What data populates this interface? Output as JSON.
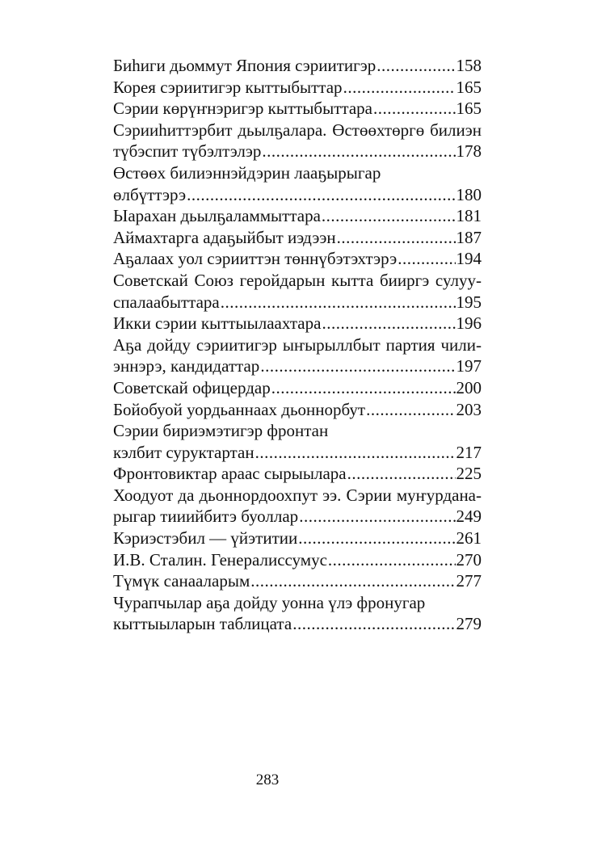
{
  "toc": {
    "entries": [
      {
        "lines": [],
        "last": "Биhиги дьоммут Япония сэриитигэр",
        "page": "158"
      },
      {
        "lines": [],
        "last": "Корея сэриитигэр кыттыбыттар",
        "page": "165"
      },
      {
        "lines": [],
        "last": "Сэрии көрүҥнэригэр кыттыбыттара",
        "page": "165"
      },
      {
        "lines": [
          {
            "text": "Сэрииhиттэрбит дьылҕалара. Өстөөхтөргө билиэн",
            "justify": true
          }
        ],
        "last": "түбэспит түбэлтэлэр",
        "page": "178"
      },
      {
        "lines": [
          {
            "text": "Өстөөх билиэннэйдэрин лааҕырыгар",
            "justify": false
          }
        ],
        "last": "өлбүттэрэ",
        "page": "180"
      },
      {
        "lines": [],
        "last": "Ыарахан дьылҕаламмыттара",
        "page": "181"
      },
      {
        "lines": [],
        "last": "Аймахтарга адаҕыйбыт иэдээн",
        "page": "187"
      },
      {
        "lines": [],
        "last": "Аҕалаах уол сэрииттэн төннүбэтэхтэрэ",
        "page": "194"
      },
      {
        "lines": [
          {
            "text": "Советскай Союз геройдарын кытта бииргэ сулуу-",
            "justify": true
          }
        ],
        "last": "спалаабыттара",
        "page": "195"
      },
      {
        "lines": [],
        "last": "Икки сэрии кыттыылаахтара",
        "page": "196"
      },
      {
        "lines": [
          {
            "text": "Аҕа дойду сэриитигэр ыҥырыллбыт партия чили-",
            "justify": true
          }
        ],
        "last": "эннэрэ, кандидаттар",
        "page": "197"
      },
      {
        "lines": [],
        "last": "Советскай офицердар",
        "page": "200"
      },
      {
        "lines": [],
        "last": "Бойобуой уордьаннаах дьоннорбут",
        "page": "203"
      },
      {
        "lines": [
          {
            "text": "Сэрии бириэмэтигэр фронтан",
            "justify": false
          }
        ],
        "last": "кэлбит суруктартан",
        "page": "217"
      },
      {
        "lines": [],
        "last": "Фронтовиктар араас сырыылара",
        "page": "225"
      },
      {
        "lines": [
          {
            "text": "Хоодуот да дьоннордоохпут ээ. Сэрии муҥурдана-",
            "justify": true
          }
        ],
        "last": "рыгар тииийбитэ буоллар",
        "page": "249"
      },
      {
        "lines": [],
        "last": "Кэриэстэбил — үйэтитии",
        "page": "261"
      },
      {
        "lines": [],
        "last": "И.В. Сталин. Генералиссумус",
        "page": "270"
      },
      {
        "lines": [],
        "last": "Түмүк санааларым",
        "page": "277"
      },
      {
        "lines": [
          {
            "text": "Чурапчылар аҕа дойду уонна үлэ фронугар",
            "justify": false
          }
        ],
        "last": "кыттыыларын таблицата",
        "page": "279"
      }
    ]
  },
  "folio": "283"
}
